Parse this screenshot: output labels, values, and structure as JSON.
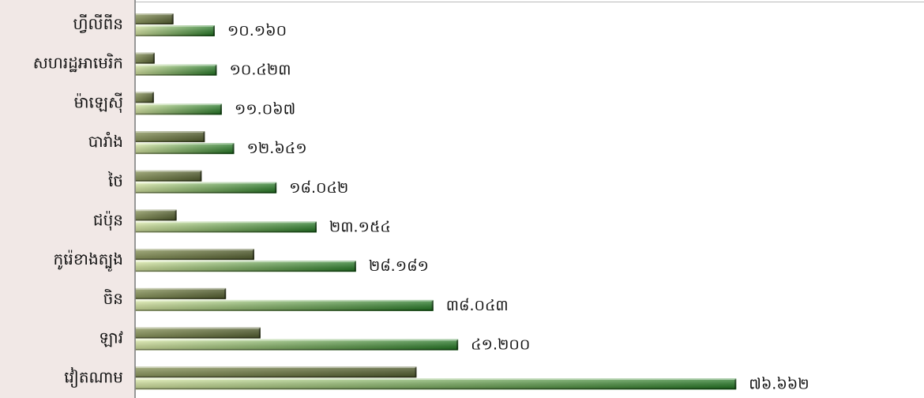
{
  "chart_data": {
    "type": "bar",
    "orientation": "horizontal",
    "categories": [
      "ហ្វីលីពីន",
      "សហរដ្ឋអាមេរិក",
      "ម៉ាឡេស៊ី",
      "បារាំង",
      "ថៃ",
      "ជប៉ុន",
      "កូរ៉េខាងត្បូង",
      "ចិន",
      "ឡាវ",
      "វៀតណាម"
    ],
    "series": [
      {
        "values": [
          4.9,
          2.5,
          2.4,
          8.9,
          8.5,
          5.3,
          15.2,
          11.6,
          16.0,
          35.9
        ]
      },
      {
        "values": [
          10.16,
          10.423,
          11.067,
          12.641,
          18.042,
          23.154,
          28.181,
          38.043,
          41.2,
          76.662
        ]
      }
    ],
    "data_labels": [
      "១០.១៦០",
      "១០.៤២៣",
      "១១.០៦៧",
      "១២.៦៤១",
      "១៨.០៤២",
      "២៣.១៥៤",
      "២៨.១៨១",
      "៣៨.០៤៣",
      "៤១.២០០",
      "៧៦.៦៦២"
    ],
    "xlim": [
      0,
      100
    ],
    "grid": false,
    "legend": "none",
    "title": "",
    "xlabel": "",
    "ylabel": "",
    "colors": {
      "label_panel": "#f1e8e6",
      "series1_dark": "#4f5a2b",
      "series1_light": "#8e9a5e",
      "series2_light": "#dff0a6",
      "series2_dark": "#1f7a1f",
      "axis": "#777777"
    }
  }
}
